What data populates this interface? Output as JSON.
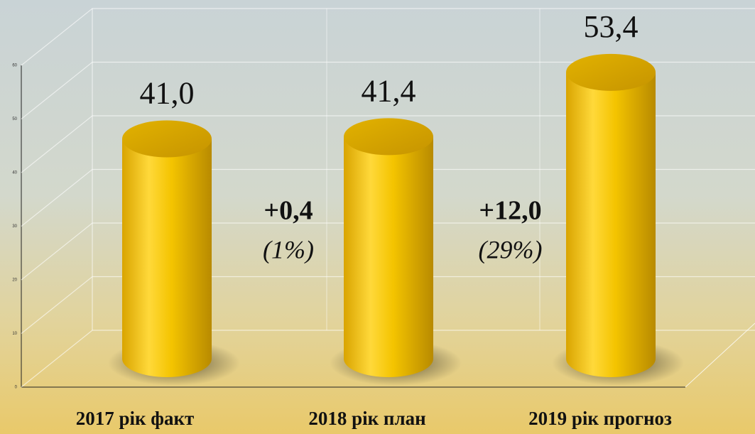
{
  "chart_data": {
    "type": "cylinder-bar",
    "categories": [
      "2017 рік факт",
      "2018 рік план",
      "2019 рік прогноз"
    ],
    "values": [
      41.0,
      41.4,
      53.4
    ],
    "value_labels": [
      "41,0",
      "41,4",
      "53,4"
    ],
    "color": "#f2c200",
    "ylim": [
      0,
      60
    ],
    "yticks": [
      0,
      10,
      20,
      30,
      40,
      50,
      60
    ],
    "grid": true,
    "annotations": [
      {
        "change": "+0,4",
        "percent": "(1%)"
      },
      {
        "change": "+12,0",
        "percent": "(29%)"
      }
    ]
  }
}
